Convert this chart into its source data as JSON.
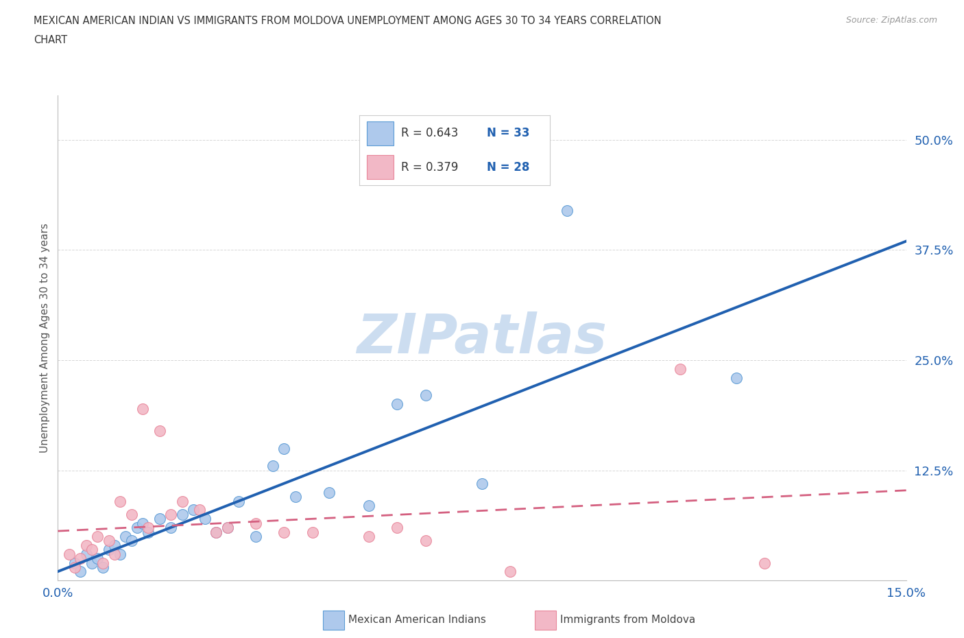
{
  "title_line1": "MEXICAN AMERICAN INDIAN VS IMMIGRANTS FROM MOLDOVA UNEMPLOYMENT AMONG AGES 30 TO 34 YEARS CORRELATION",
  "title_line2": "CHART",
  "source": "Source: ZipAtlas.com",
  "ylabel": "Unemployment Among Ages 30 to 34 years",
  "xlim": [
    0.0,
    0.15
  ],
  "ylim": [
    0.0,
    0.55
  ],
  "xtick_positions": [
    0.0,
    0.025,
    0.05,
    0.075,
    0.1,
    0.125,
    0.15
  ],
  "xticklabels": [
    "0.0%",
    "",
    "",
    "",
    "",
    "",
    "15.0%"
  ],
  "ytick_positions": [
    0.0,
    0.125,
    0.25,
    0.375,
    0.5
  ],
  "yticklabels": [
    "",
    "12.5%",
    "25.0%",
    "37.5%",
    "50.0%"
  ],
  "r_blue": 0.643,
  "n_blue": 33,
  "r_pink": 0.379,
  "n_pink": 28,
  "blue_fill": "#aec9ec",
  "pink_fill": "#f2b8c6",
  "blue_edge": "#5b9bd5",
  "pink_edge": "#e8869a",
  "line_blue_color": "#2060b0",
  "line_pink_color": "#d46080",
  "blue_scatter": [
    [
      0.003,
      0.02
    ],
    [
      0.004,
      0.01
    ],
    [
      0.005,
      0.03
    ],
    [
      0.006,
      0.02
    ],
    [
      0.007,
      0.025
    ],
    [
      0.008,
      0.015
    ],
    [
      0.009,
      0.035
    ],
    [
      0.01,
      0.04
    ],
    [
      0.011,
      0.03
    ],
    [
      0.012,
      0.05
    ],
    [
      0.013,
      0.045
    ],
    [
      0.014,
      0.06
    ],
    [
      0.015,
      0.065
    ],
    [
      0.016,
      0.055
    ],
    [
      0.018,
      0.07
    ],
    [
      0.02,
      0.06
    ],
    [
      0.022,
      0.075
    ],
    [
      0.024,
      0.08
    ],
    [
      0.026,
      0.07
    ],
    [
      0.028,
      0.055
    ],
    [
      0.03,
      0.06
    ],
    [
      0.032,
      0.09
    ],
    [
      0.035,
      0.05
    ],
    [
      0.038,
      0.13
    ],
    [
      0.04,
      0.15
    ],
    [
      0.042,
      0.095
    ],
    [
      0.048,
      0.1
    ],
    [
      0.055,
      0.085
    ],
    [
      0.06,
      0.2
    ],
    [
      0.065,
      0.21
    ],
    [
      0.075,
      0.11
    ],
    [
      0.09,
      0.42
    ],
    [
      0.12,
      0.23
    ]
  ],
  "pink_scatter": [
    [
      0.002,
      0.03
    ],
    [
      0.003,
      0.015
    ],
    [
      0.004,
      0.025
    ],
    [
      0.005,
      0.04
    ],
    [
      0.006,
      0.035
    ],
    [
      0.007,
      0.05
    ],
    [
      0.008,
      0.02
    ],
    [
      0.009,
      0.045
    ],
    [
      0.01,
      0.03
    ],
    [
      0.011,
      0.09
    ],
    [
      0.013,
      0.075
    ],
    [
      0.015,
      0.195
    ],
    [
      0.016,
      0.06
    ],
    [
      0.018,
      0.17
    ],
    [
      0.02,
      0.075
    ],
    [
      0.022,
      0.09
    ],
    [
      0.025,
      0.08
    ],
    [
      0.028,
      0.055
    ],
    [
      0.03,
      0.06
    ],
    [
      0.035,
      0.065
    ],
    [
      0.04,
      0.055
    ],
    [
      0.045,
      0.055
    ],
    [
      0.055,
      0.05
    ],
    [
      0.06,
      0.06
    ],
    [
      0.065,
      0.045
    ],
    [
      0.08,
      0.01
    ],
    [
      0.11,
      0.24
    ],
    [
      0.125,
      0.02
    ]
  ],
  "watermark_text": "ZIPatlas",
  "watermark_color": "#ccddf0",
  "background_color": "#ffffff",
  "grid_color": "#cccccc"
}
